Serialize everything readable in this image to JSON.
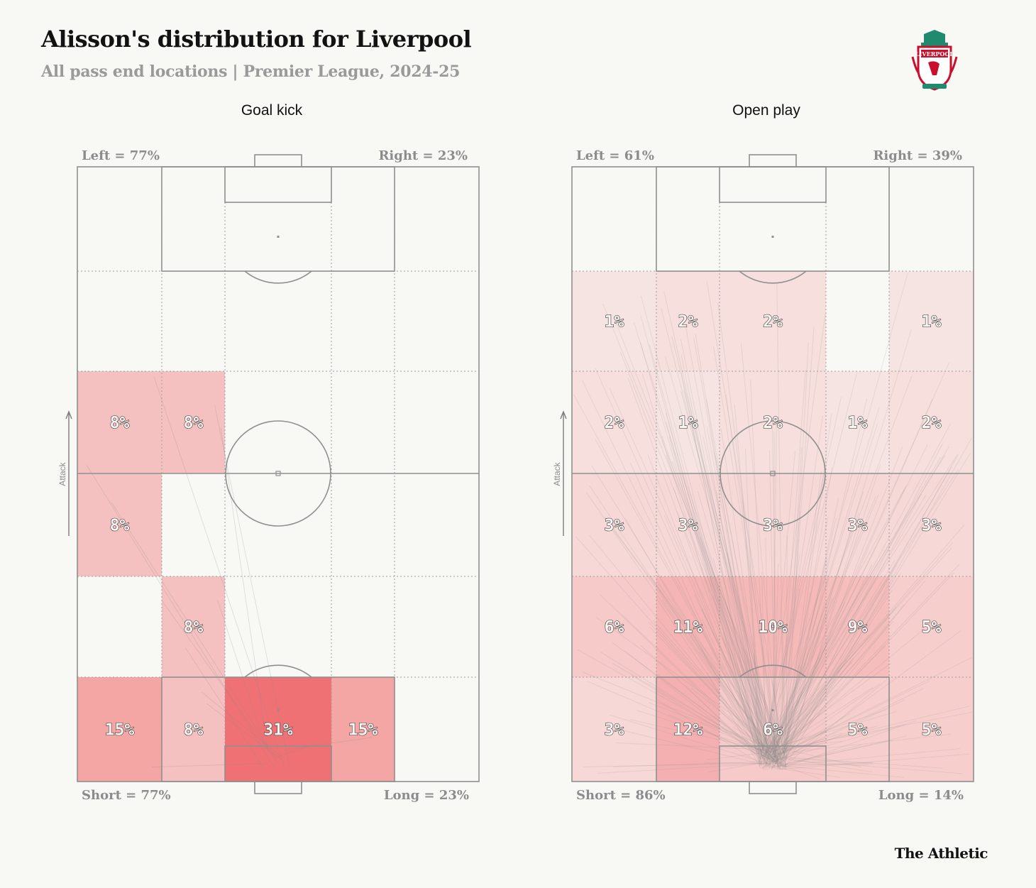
{
  "header": {
    "title": "Alisson's distribution for Liverpool",
    "subtitle": "All pass end locations | Premier League, 2024-25",
    "brand": "The Athletic",
    "club_crest_text": "LIVERPOOL"
  },
  "colors": {
    "background": "#f8f8f5",
    "pitch_line": "#8f8f8f",
    "grid_line": "#9c9c9c",
    "label_gray": "#8c8c8c",
    "heat_base": "#ef5b5e"
  },
  "chart_data": [
    {
      "type": "heatmap",
      "title": "Goal kick",
      "columns": [
        "left-wide",
        "left-half",
        "centre",
        "right-half",
        "right-wide"
      ],
      "rows": [
        "final-third-top",
        "attacking-mid",
        "mid-upper",
        "mid-lower",
        "def-upper",
        "def-box"
      ],
      "values": [
        [
          0,
          0,
          0,
          0,
          0
        ],
        [
          0,
          0,
          0,
          0,
          0
        ],
        [
          8,
          8,
          0,
          0,
          0
        ],
        [
          8,
          0,
          0,
          0,
          0
        ],
        [
          0,
          8,
          0,
          0,
          0
        ],
        [
          15,
          8,
          31,
          15,
          0
        ]
      ],
      "max_value": 31,
      "labels": {
        "left": "Left = 77%",
        "right": "Right = 23%",
        "short": "Short = 77%",
        "long": "Long = 23%",
        "attack": "Attack"
      },
      "arrow_count": 13
    },
    {
      "type": "heatmap",
      "title": "Open play",
      "columns": [
        "left-wide",
        "left-half",
        "centre",
        "right-half",
        "right-wide"
      ],
      "rows": [
        "final-third-top",
        "attacking-mid",
        "mid-upper",
        "mid-lower",
        "def-upper",
        "def-box"
      ],
      "values": [
        [
          0,
          0,
          0,
          0,
          0
        ],
        [
          1,
          2,
          2,
          0,
          1
        ],
        [
          2,
          1,
          2,
          1,
          2
        ],
        [
          3,
          3,
          3,
          3,
          3
        ],
        [
          6,
          11,
          10,
          9,
          5
        ],
        [
          3,
          12,
          6,
          5,
          5
        ]
      ],
      "max_value": 31,
      "labels": {
        "left": "Left = 61%",
        "right": "Right = 39%",
        "short": "Short = 86%",
        "long": "Long = 14%",
        "attack": "Attack"
      },
      "arrow_count": 260
    }
  ]
}
